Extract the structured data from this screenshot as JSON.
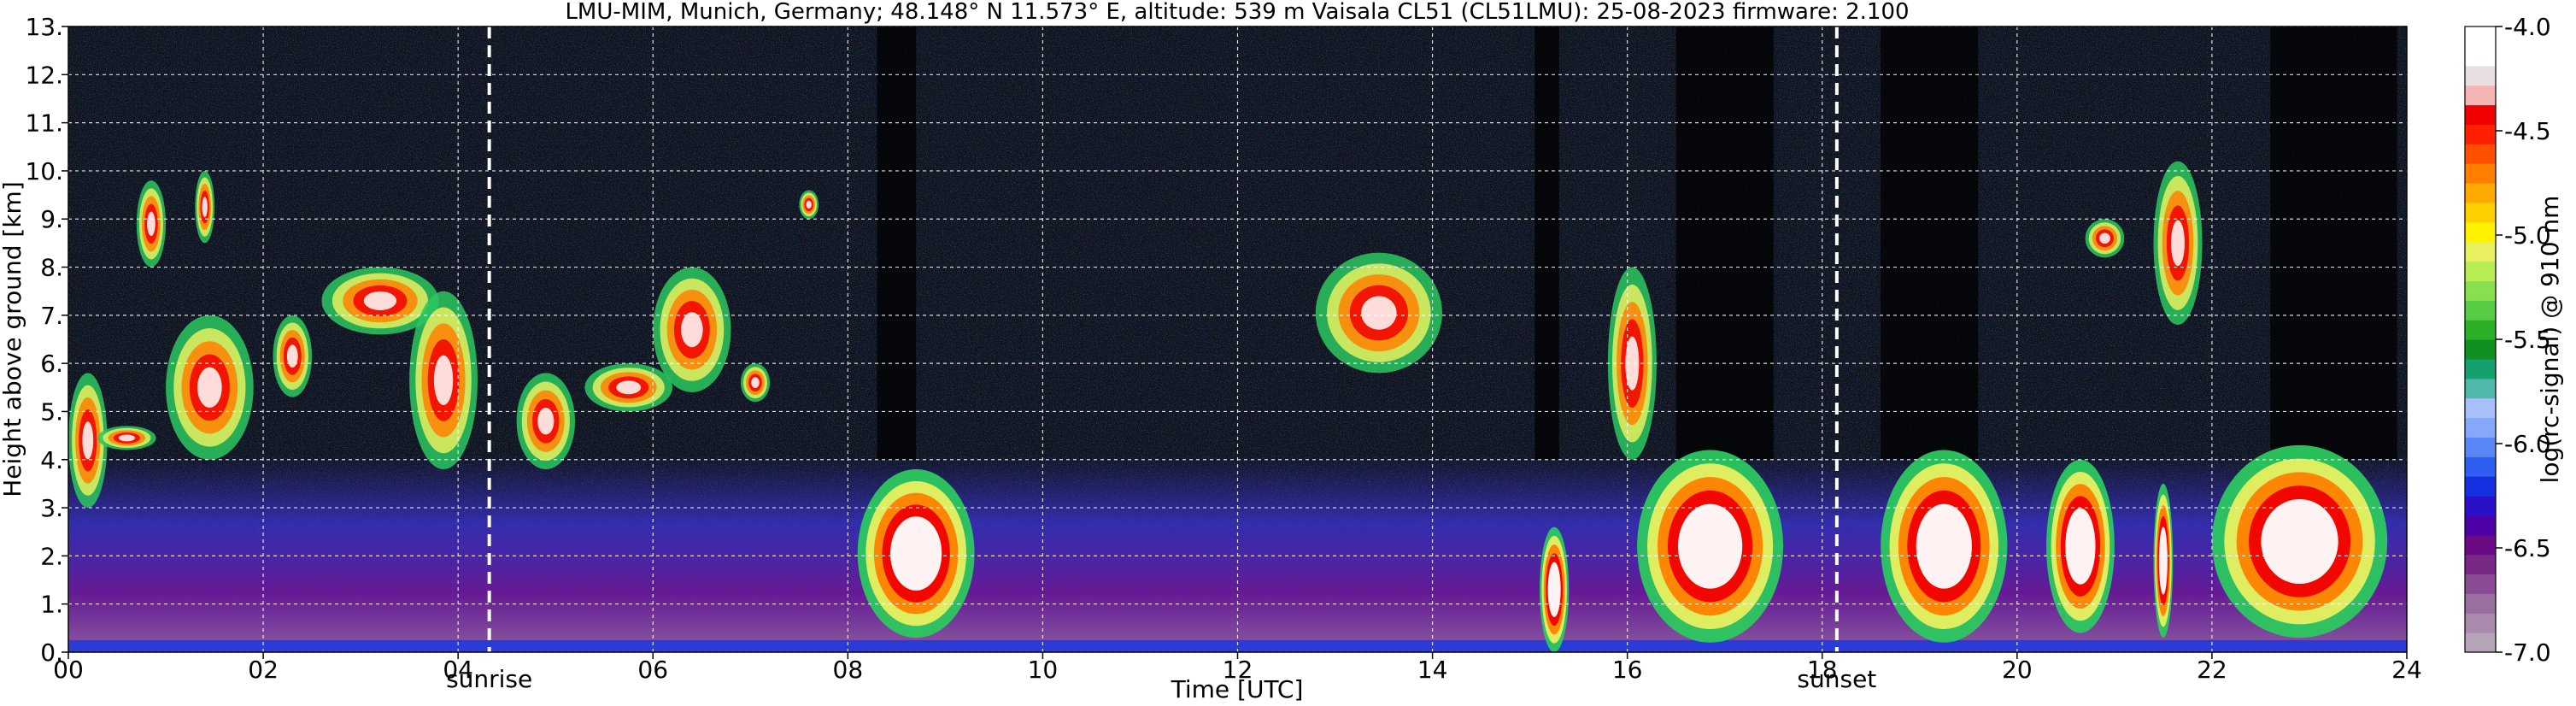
{
  "chart_data": {
    "type": "heatmap",
    "title": "LMU-MIM, Munich, Germany; 48.148° N 11.573° E, altitude: 539 m    Vaisala CL51 (CL51LMU): 25-08-2023    firmware: 2.100",
    "xlabel": "Time [UTC]",
    "ylabel": "Height above ground [km]",
    "x_range_hours": [
      0,
      24
    ],
    "y_range_km": [
      0,
      13
    ],
    "x_ticks": [
      {
        "value": 0,
        "label": "00"
      },
      {
        "value": 2,
        "label": "02"
      },
      {
        "value": 4,
        "label": "04"
      },
      {
        "value": 6,
        "label": "06"
      },
      {
        "value": 8,
        "label": "08"
      },
      {
        "value": 10,
        "label": "10"
      },
      {
        "value": 12,
        "label": "12"
      },
      {
        "value": 14,
        "label": "14"
      },
      {
        "value": 16,
        "label": "16"
      },
      {
        "value": 18,
        "label": "18"
      },
      {
        "value": 20,
        "label": "20"
      },
      {
        "value": 22,
        "label": "22"
      },
      {
        "value": 24,
        "label": "24"
      }
    ],
    "y_ticks": [
      {
        "value": 0,
        "label": "0."
      },
      {
        "value": 1,
        "label": "1."
      },
      {
        "value": 2,
        "label": "2."
      },
      {
        "value": 3,
        "label": "3."
      },
      {
        "value": 4,
        "label": "4."
      },
      {
        "value": 5,
        "label": "5."
      },
      {
        "value": 6,
        "label": "6."
      },
      {
        "value": 7,
        "label": "7."
      },
      {
        "value": 8,
        "label": "8."
      },
      {
        "value": 9,
        "label": "9."
      },
      {
        "value": 10,
        "label": "10."
      },
      {
        "value": 11,
        "label": "11."
      },
      {
        "value": 12,
        "label": "12."
      },
      {
        "value": 13,
        "label": "13."
      }
    ],
    "grid": true,
    "annotations": [
      {
        "name": "sunrise",
        "time_hours": 4.32,
        "label": "sunrise"
      },
      {
        "name": "sunset",
        "time_hours": 18.15,
        "label": "sunset"
      }
    ],
    "colorbar": {
      "label": "log(rc-signal) @ 910 nm",
      "range": [
        -7.0,
        -4.0
      ],
      "ticks": [
        {
          "value": -4.0,
          "label": "-4.0"
        },
        {
          "value": -4.5,
          "label": "-4.5"
        },
        {
          "value": -5.0,
          "label": "-5.0"
        },
        {
          "value": -5.5,
          "label": "-5.5"
        },
        {
          "value": -6.0,
          "label": "-6.0"
        },
        {
          "value": -6.5,
          "label": "-6.5"
        },
        {
          "value": -7.0,
          "label": "-7.0"
        }
      ],
      "colors": [
        "#b5a3b8",
        "#a98aad",
        "#9a6fa0",
        "#8a4d93",
        "#7a2886",
        "#6a0a85",
        "#4d00a8",
        "#2a10c8",
        "#1530e0",
        "#2f5ff0",
        "#5a86f5",
        "#86a8f8",
        "#a8c0fa",
        "#4fb8a8",
        "#15a070",
        "#0f9020",
        "#2cb028",
        "#55cc44",
        "#88e04e",
        "#b8ec55",
        "#e8f060",
        "#fff200",
        "#ffd000",
        "#ffaa00",
        "#ff8000",
        "#ff5000",
        "#ff2000",
        "#f00000",
        "#f6b5b5",
        "#e8e0e0",
        "#ffffff",
        "#ffffff"
      ]
    },
    "features": {
      "cloud_layers": [
        {
          "t0": 0.0,
          "t1": 0.4,
          "bottom_km": 3.0,
          "top_km": 5.8
        },
        {
          "t0": 0.3,
          "t1": 0.9,
          "bottom_km": 4.2,
          "top_km": 4.7
        },
        {
          "t0": 0.7,
          "t1": 1.0,
          "bottom_km": 8.0,
          "top_km": 9.8
        },
        {
          "t0": 1.0,
          "t1": 1.9,
          "bottom_km": 4.0,
          "top_km": 7.0
        },
        {
          "t0": 1.3,
          "t1": 1.5,
          "bottom_km": 8.5,
          "top_km": 10.0
        },
        {
          "t0": 2.1,
          "t1": 2.5,
          "bottom_km": 5.3,
          "top_km": 7.0
        },
        {
          "t0": 2.6,
          "t1": 3.8,
          "bottom_km": 6.6,
          "top_km": 8.0
        },
        {
          "t0": 3.5,
          "t1": 4.2,
          "bottom_km": 3.8,
          "top_km": 7.5
        },
        {
          "t0": 4.6,
          "t1": 5.2,
          "bottom_km": 3.8,
          "top_km": 5.8
        },
        {
          "t0": 5.3,
          "t1": 6.2,
          "bottom_km": 5.0,
          "top_km": 6.0
        },
        {
          "t0": 6.0,
          "t1": 6.8,
          "bottom_km": 5.4,
          "top_km": 8.0
        },
        {
          "t0": 6.9,
          "t1": 7.2,
          "bottom_km": 5.2,
          "top_km": 6.0
        },
        {
          "t0": 7.5,
          "t1": 7.7,
          "bottom_km": 9.0,
          "top_km": 9.6
        },
        {
          "t0": 12.8,
          "t1": 14.1,
          "bottom_km": 5.8,
          "top_km": 8.3
        },
        {
          "t0": 15.8,
          "t1": 16.3,
          "bottom_km": 4.0,
          "top_km": 8.0
        },
        {
          "t0": 20.7,
          "t1": 21.1,
          "bottom_km": 8.2,
          "top_km": 9.0
        },
        {
          "t0": 21.4,
          "t1": 21.9,
          "bottom_km": 6.8,
          "top_km": 10.2
        }
      ],
      "dense_low_cloud": [
        {
          "t0": 8.1,
          "t1": 9.3,
          "bottom_km": 0.3,
          "top_km": 3.8
        },
        {
          "t0": 15.1,
          "t1": 15.4,
          "bottom_km": 0.0,
          "top_km": 2.6
        },
        {
          "t0": 16.1,
          "t1": 17.6,
          "bottom_km": 0.2,
          "top_km": 4.2
        },
        {
          "t0": 18.6,
          "t1": 19.9,
          "bottom_km": 0.2,
          "top_km": 4.2
        },
        {
          "t0": 20.3,
          "t1": 21.0,
          "bottom_km": 0.4,
          "top_km": 4.0
        },
        {
          "t0": 21.4,
          "t1": 21.6,
          "bottom_km": 0.3,
          "top_km": 3.5
        },
        {
          "t0": 22.0,
          "t1": 23.8,
          "bottom_km": 0.3,
          "top_km": 4.3
        }
      ],
      "signal_attenuated_columns": [
        {
          "t0": 8.3,
          "t1": 8.7
        },
        {
          "t0": 15.05,
          "t1": 15.3
        },
        {
          "t0": 16.5,
          "t1": 17.5
        },
        {
          "t0": 18.6,
          "t1": 19.6
        },
        {
          "t0": 22.6,
          "t1": 23.9
        }
      ]
    }
  }
}
